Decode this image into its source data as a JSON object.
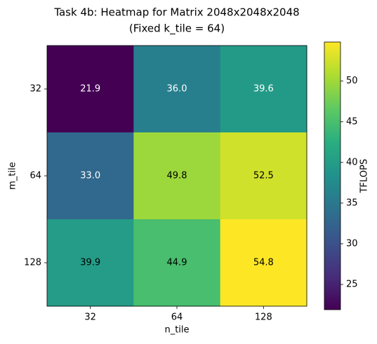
{
  "chart_data": {
    "type": "heatmap",
    "title": [
      "Task 4b: Heatmap for Matrix 2048x2048x2048",
      "(Fixed k_tile = 64)"
    ],
    "x_label": "n_tile",
    "y_label": "m_tile",
    "x_categories": [
      "32",
      "64",
      "128"
    ],
    "y_categories": [
      "32",
      "64",
      "128"
    ],
    "values": [
      [
        21.9,
        36.0,
        39.6
      ],
      [
        33.0,
        49.8,
        52.5
      ],
      [
        39.9,
        44.9,
        54.8
      ]
    ],
    "value_labels": [
      [
        "21.9",
        "36.0",
        "39.6"
      ],
      [
        "33.0",
        "49.8",
        "52.5"
      ],
      [
        "39.9",
        "44.9",
        "54.8"
      ]
    ],
    "value_label_colors": [
      [
        "#ffffff",
        "#ffffff",
        "#ffffff"
      ],
      [
        "#ffffff",
        "#000000",
        "#000000"
      ],
      [
        "#000000",
        "#000000",
        "#000000"
      ]
    ],
    "colormap": "viridis",
    "colorbar_label": "TFLOPS",
    "clim": [
      21.9,
      54.8
    ],
    "cticks": [
      25,
      30,
      35,
      40,
      45,
      50
    ]
  }
}
